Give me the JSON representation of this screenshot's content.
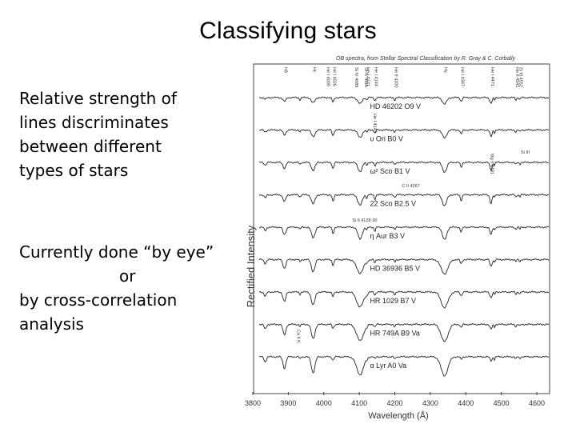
{
  "slide": {
    "title": "Classifying stars",
    "paragraph1": [
      "Relative strength of",
      "lines discriminates",
      "between different",
      "types of stars"
    ],
    "paragraph2": [
      "Currently done “by eye”",
      "or",
      "by cross-correlation",
      "analysis"
    ]
  },
  "figure": {
    "caption": "OB spectra, from Stellar Spectral Classification by R. Gray & C. Corbally",
    "ylabel": "Rectified Intensity",
    "xlabel": "Wavelength (Å)",
    "xticks": [
      "3800",
      "3900",
      "4000",
      "4100",
      "4200",
      "4300",
      "4400",
      "4500",
      "4600"
    ],
    "spectra": [
      {
        "star": "HD 46202",
        "type": "O9 V"
      },
      {
        "star": "υ Ori",
        "type": "B0 V"
      },
      {
        "star": "ω² Sco",
        "type": "B1 V"
      },
      {
        "star": "22 Sco",
        "type": "B2.5 V"
      },
      {
        "star": "η Aur",
        "type": "B3 V"
      },
      {
        "star": "HD 36936",
        "type": "B5 V"
      },
      {
        "star": "HR 1029",
        "type": "B7 V"
      },
      {
        "star": "HR 749A",
        "type": "B9 Va"
      },
      {
        "star": "α Lyr",
        "type": "A0 Va"
      }
    ],
    "top_line_labels": [
      "Hε",
      "Hδ",
      "He I 4009",
      "He I 4026",
      "Si IV 4089",
      "Si IV 4116",
      "He I 4121",
      "He I 4144",
      "He II 4200",
      "Hγ",
      "He I 4387",
      "He I 4471",
      "He II 4541",
      "Si III 4552"
    ],
    "annotations": [
      "C II 4267",
      "Si II 4128-30",
      "Mg II 4481",
      "Ca II K",
      "He I 4143",
      "Si III"
    ]
  }
}
